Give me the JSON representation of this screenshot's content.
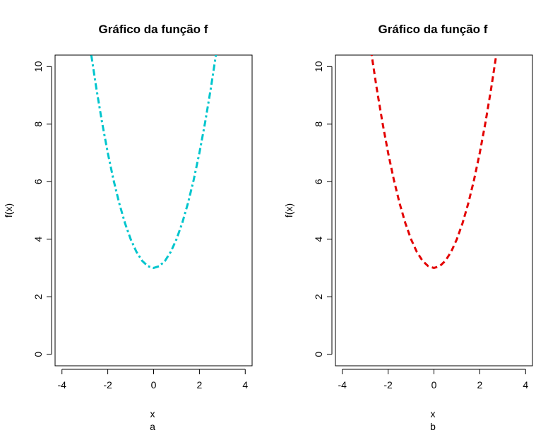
{
  "chart_data": [
    {
      "type": "line",
      "title": "Gráfico da função f",
      "xlabel": "x",
      "sublabel": "a",
      "ylabel": "f(x)",
      "xlim": [
        -4.3,
        4.3
      ],
      "ylim": [
        -0.4,
        10.4
      ],
      "x_ticks": [
        "-4",
        "-2",
        "0",
        "2",
        "4"
      ],
      "y_ticks": [
        "0",
        "2",
        "4",
        "6",
        "8",
        "10"
      ],
      "line_style": "dotdash",
      "color": "#00C5CD",
      "series": [
        {
          "x": [
            -2.75,
            -2.5,
            -2.25,
            -2,
            -1.75,
            -1.5,
            -1.25,
            -1,
            -0.75,
            -0.5,
            -0.25,
            0,
            0.25,
            0.5,
            0.75,
            1,
            1.25,
            1.5,
            1.75,
            2,
            2.25,
            2.5,
            2.75
          ],
          "values": [
            10.5625,
            9.25,
            8.0625,
            7,
            6.0625,
            5.25,
            4.5625,
            4,
            3.5625,
            3.25,
            3.0625,
            3,
            3.0625,
            3.25,
            3.5625,
            4,
            4.5625,
            5.25,
            6.0625,
            7,
            8.0625,
            9.25,
            10.5625
          ]
        }
      ]
    },
    {
      "type": "line",
      "title": "Gráfico da função f",
      "xlabel": "x",
      "sublabel": "b",
      "ylabel": "f(x)",
      "xlim": [
        -4.3,
        4.3
      ],
      "ylim": [
        -0.4,
        10.4
      ],
      "x_ticks": [
        "-4",
        "-2",
        "0",
        "2",
        "4"
      ],
      "y_ticks": [
        "0",
        "2",
        "4",
        "6",
        "8",
        "10"
      ],
      "line_style": "dashed",
      "color": "#E30000",
      "series": [
        {
          "x": [
            -2.75,
            -2.5,
            -2.25,
            -2,
            -1.75,
            -1.5,
            -1.25,
            -1,
            -0.75,
            -0.5,
            -0.25,
            0,
            0.25,
            0.5,
            0.75,
            1,
            1.25,
            1.5,
            1.75,
            2,
            2.25,
            2.5,
            2.75
          ],
          "values": [
            10.5625,
            9.25,
            8.0625,
            7,
            6.0625,
            5.25,
            4.5625,
            4,
            3.5625,
            3.25,
            3.0625,
            3,
            3.0625,
            3.25,
            3.5625,
            4,
            4.5625,
            5.25,
            6.0625,
            7,
            8.0625,
            9.25,
            10.5625
          ]
        }
      ]
    }
  ]
}
